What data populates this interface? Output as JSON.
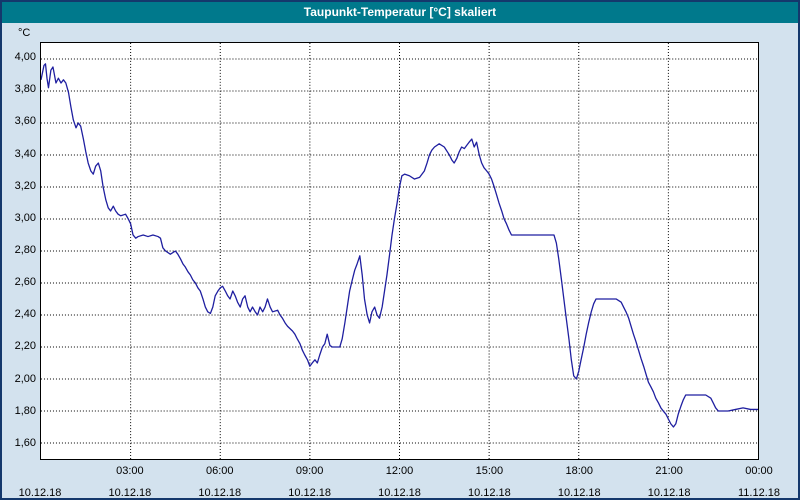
{
  "window": {
    "title": "Taupunkt-Temperatur [°C] skaliert"
  },
  "chart_data": {
    "type": "line",
    "title": "Taupunkt-Temperatur [°C] skaliert",
    "xlabel": "",
    "ylabel": "°C",
    "grid": true,
    "legend": "none",
    "y_range": [
      1.5,
      4.1
    ],
    "x_range_hours": [
      0,
      24
    ],
    "y_ticks": [
      {
        "v": 4.0,
        "label": "4,00"
      },
      {
        "v": 3.8,
        "label": "3,80"
      },
      {
        "v": 3.6,
        "label": "3,60"
      },
      {
        "v": 3.4,
        "label": "3,40"
      },
      {
        "v": 3.2,
        "label": "3,20"
      },
      {
        "v": 3.0,
        "label": "3,00"
      },
      {
        "v": 2.8,
        "label": "2,80"
      },
      {
        "v": 2.6,
        "label": "2,60"
      },
      {
        "v": 2.4,
        "label": "2,40"
      },
      {
        "v": 2.2,
        "label": "2,20"
      },
      {
        "v": 2.0,
        "label": "2,00"
      },
      {
        "v": 1.8,
        "label": "1,80"
      },
      {
        "v": 1.6,
        "label": "1,60"
      }
    ],
    "x_origin": {
      "h": 0,
      "date": "10.12.18"
    },
    "x_ticks": [
      {
        "h": 3,
        "time": "03:00",
        "date": "10.12.18"
      },
      {
        "h": 6,
        "time": "06:00",
        "date": "10.12.18"
      },
      {
        "h": 9,
        "time": "09:00",
        "date": "10.12.18"
      },
      {
        "h": 12,
        "time": "12:00",
        "date": "10.12.18"
      },
      {
        "h": 15,
        "time": "15:00",
        "date": "10.12.18"
      },
      {
        "h": 18,
        "time": "18:00",
        "date": "10.12.18"
      },
      {
        "h": 21,
        "time": "21:00",
        "date": "10.12.18"
      },
      {
        "h": 24,
        "time": "00:00",
        "date": "11.12.18"
      }
    ],
    "series": [
      {
        "name": "Taupunkt-Temperatur",
        "color": "#1f1fa0",
        "points": [
          [
            0,
            3.87
          ],
          [
            0.1,
            3.96
          ],
          [
            0.15,
            3.97
          ],
          [
            0.2,
            3.88
          ],
          [
            0.25,
            3.82
          ],
          [
            0.33,
            3.93
          ],
          [
            0.4,
            3.95
          ],
          [
            0.5,
            3.85
          ],
          [
            0.58,
            3.88
          ],
          [
            0.67,
            3.85
          ],
          [
            0.75,
            3.87
          ],
          [
            0.83,
            3.85
          ],
          [
            0.92,
            3.79
          ],
          [
            1,
            3.7
          ],
          [
            1.08,
            3.62
          ],
          [
            1.17,
            3.57
          ],
          [
            1.25,
            3.6
          ],
          [
            1.33,
            3.58
          ],
          [
            1.42,
            3.5
          ],
          [
            1.5,
            3.42
          ],
          [
            1.58,
            3.35
          ],
          [
            1.67,
            3.3
          ],
          [
            1.75,
            3.28
          ],
          [
            1.83,
            3.33
          ],
          [
            1.92,
            3.35
          ],
          [
            2,
            3.3
          ],
          [
            2.08,
            3.2
          ],
          [
            2.17,
            3.12
          ],
          [
            2.25,
            3.07
          ],
          [
            2.33,
            3.05
          ],
          [
            2.42,
            3.08
          ],
          [
            2.5,
            3.05
          ],
          [
            2.58,
            3.03
          ],
          [
            2.67,
            3.02
          ],
          [
            2.83,
            3.03
          ],
          [
            2.92,
            3.0
          ],
          [
            3,
            2.97
          ],
          [
            3.08,
            2.9
          ],
          [
            3.17,
            2.88
          ],
          [
            3.25,
            2.89
          ],
          [
            3.42,
            2.9
          ],
          [
            3.58,
            2.89
          ],
          [
            3.75,
            2.9
          ],
          [
            3.92,
            2.89
          ],
          [
            4,
            2.88
          ],
          [
            4.08,
            2.82
          ],
          [
            4.17,
            2.8
          ],
          [
            4.33,
            2.78
          ],
          [
            4.5,
            2.8
          ],
          [
            4.58,
            2.78
          ],
          [
            4.67,
            2.75
          ],
          [
            4.75,
            2.72
          ],
          [
            4.83,
            2.7
          ],
          [
            4.92,
            2.67
          ],
          [
            5,
            2.65
          ],
          [
            5.08,
            2.62
          ],
          [
            5.17,
            2.6
          ],
          [
            5.25,
            2.57
          ],
          [
            5.33,
            2.55
          ],
          [
            5.42,
            2.5
          ],
          [
            5.5,
            2.45
          ],
          [
            5.58,
            2.42
          ],
          [
            5.67,
            2.41
          ],
          [
            5.75,
            2.45
          ],
          [
            5.83,
            2.52
          ],
          [
            5.92,
            2.55
          ],
          [
            6,
            2.57
          ],
          [
            6.08,
            2.58
          ],
          [
            6.17,
            2.55
          ],
          [
            6.25,
            2.52
          ],
          [
            6.33,
            2.5
          ],
          [
            6.42,
            2.55
          ],
          [
            6.5,
            2.52
          ],
          [
            6.58,
            2.48
          ],
          [
            6.67,
            2.45
          ],
          [
            6.75,
            2.5
          ],
          [
            6.83,
            2.52
          ],
          [
            6.92,
            2.45
          ],
          [
            7,
            2.42
          ],
          [
            7.08,
            2.45
          ],
          [
            7.17,
            2.42
          ],
          [
            7.25,
            2.4
          ],
          [
            7.33,
            2.45
          ],
          [
            7.42,
            2.42
          ],
          [
            7.5,
            2.45
          ],
          [
            7.58,
            2.5
          ],
          [
            7.67,
            2.45
          ],
          [
            7.75,
            2.42
          ],
          [
            7.92,
            2.43
          ],
          [
            8,
            2.4
          ],
          [
            8.08,
            2.38
          ],
          [
            8.17,
            2.35
          ],
          [
            8.25,
            2.33
          ],
          [
            8.42,
            2.3
          ],
          [
            8.5,
            2.28
          ],
          [
            8.58,
            2.25
          ],
          [
            8.67,
            2.22
          ],
          [
            8.75,
            2.18
          ],
          [
            8.83,
            2.15
          ],
          [
            8.92,
            2.12
          ],
          [
            9,
            2.08
          ],
          [
            9.08,
            2.1
          ],
          [
            9.17,
            2.12
          ],
          [
            9.25,
            2.1
          ],
          [
            9.33,
            2.15
          ],
          [
            9.42,
            2.2
          ],
          [
            9.5,
            2.22
          ],
          [
            9.58,
            2.28
          ],
          [
            9.67,
            2.21
          ],
          [
            9.75,
            2.2
          ],
          [
            10,
            2.2
          ],
          [
            10.08,
            2.25
          ],
          [
            10.17,
            2.35
          ],
          [
            10.25,
            2.45
          ],
          [
            10.33,
            2.55
          ],
          [
            10.42,
            2.62
          ],
          [
            10.5,
            2.68
          ],
          [
            10.58,
            2.72
          ],
          [
            10.67,
            2.77
          ],
          [
            10.75,
            2.65
          ],
          [
            10.83,
            2.5
          ],
          [
            10.92,
            2.4
          ],
          [
            11,
            2.35
          ],
          [
            11.08,
            2.42
          ],
          [
            11.17,
            2.45
          ],
          [
            11.25,
            2.4
          ],
          [
            11.33,
            2.38
          ],
          [
            11.42,
            2.45
          ],
          [
            11.5,
            2.55
          ],
          [
            11.58,
            2.65
          ],
          [
            11.67,
            2.78
          ],
          [
            11.75,
            2.9
          ],
          [
            11.83,
            3.0
          ],
          [
            11.92,
            3.1
          ],
          [
            12,
            3.2
          ],
          [
            12.08,
            3.27
          ],
          [
            12.17,
            3.28
          ],
          [
            12.33,
            3.27
          ],
          [
            12.5,
            3.25
          ],
          [
            12.67,
            3.26
          ],
          [
            12.83,
            3.3
          ],
          [
            12.92,
            3.35
          ],
          [
            13,
            3.4
          ],
          [
            13.08,
            3.43
          ],
          [
            13.17,
            3.45
          ],
          [
            13.33,
            3.47
          ],
          [
            13.5,
            3.45
          ],
          [
            13.67,
            3.4
          ],
          [
            13.75,
            3.37
          ],
          [
            13.83,
            3.35
          ],
          [
            13.92,
            3.38
          ],
          [
            14,
            3.42
          ],
          [
            14.08,
            3.45
          ],
          [
            14.17,
            3.44
          ],
          [
            14.25,
            3.46
          ],
          [
            14.33,
            3.48
          ],
          [
            14.42,
            3.5
          ],
          [
            14.5,
            3.45
          ],
          [
            14.58,
            3.48
          ],
          [
            14.67,
            3.4
          ],
          [
            14.75,
            3.35
          ],
          [
            14.83,
            3.32
          ],
          [
            14.92,
            3.3
          ],
          [
            15,
            3.28
          ],
          [
            15.08,
            3.25
          ],
          [
            15.17,
            3.2
          ],
          [
            15.25,
            3.15
          ],
          [
            15.33,
            3.1
          ],
          [
            15.42,
            3.05
          ],
          [
            15.5,
            3.0
          ],
          [
            15.58,
            2.97
          ],
          [
            15.67,
            2.93
          ],
          [
            15.75,
            2.9
          ],
          [
            16,
            2.9
          ],
          [
            16.5,
            2.9
          ],
          [
            17,
            2.9
          ],
          [
            17.17,
            2.9
          ],
          [
            17.25,
            2.85
          ],
          [
            17.33,
            2.75
          ],
          [
            17.42,
            2.62
          ],
          [
            17.5,
            2.5
          ],
          [
            17.58,
            2.38
          ],
          [
            17.67,
            2.25
          ],
          [
            17.75,
            2.12
          ],
          [
            17.83,
            2.02
          ],
          [
            17.92,
            2.0
          ],
          [
            18,
            2.05
          ],
          [
            18.08,
            2.12
          ],
          [
            18.17,
            2.2
          ],
          [
            18.25,
            2.28
          ],
          [
            18.33,
            2.35
          ],
          [
            18.42,
            2.42
          ],
          [
            18.5,
            2.47
          ],
          [
            18.58,
            2.5
          ],
          [
            18.75,
            2.5
          ],
          [
            19,
            2.5
          ],
          [
            19.25,
            2.5
          ],
          [
            19.42,
            2.48
          ],
          [
            19.5,
            2.45
          ],
          [
            19.58,
            2.42
          ],
          [
            19.67,
            2.38
          ],
          [
            19.75,
            2.33
          ],
          [
            19.83,
            2.28
          ],
          [
            19.92,
            2.23
          ],
          [
            20,
            2.18
          ],
          [
            20.08,
            2.13
          ],
          [
            20.17,
            2.08
          ],
          [
            20.25,
            2.03
          ],
          [
            20.33,
            1.98
          ],
          [
            20.42,
            1.95
          ],
          [
            20.5,
            1.92
          ],
          [
            20.58,
            1.88
          ],
          [
            20.67,
            1.85
          ],
          [
            20.75,
            1.82
          ],
          [
            20.83,
            1.8
          ],
          [
            20.92,
            1.78
          ],
          [
            21,
            1.75
          ],
          [
            21.08,
            1.72
          ],
          [
            21.17,
            1.7
          ],
          [
            21.25,
            1.72
          ],
          [
            21.33,
            1.78
          ],
          [
            21.42,
            1.83
          ],
          [
            21.5,
            1.87
          ],
          [
            21.58,
            1.9
          ],
          [
            21.75,
            1.9
          ],
          [
            22,
            1.9
          ],
          [
            22.25,
            1.9
          ],
          [
            22.42,
            1.88
          ],
          [
            22.5,
            1.85
          ],
          [
            22.58,
            1.82
          ],
          [
            22.67,
            1.8
          ],
          [
            23,
            1.8
          ],
          [
            23.25,
            1.81
          ],
          [
            23.5,
            1.82
          ],
          [
            23.75,
            1.81
          ],
          [
            24,
            1.81
          ]
        ]
      }
    ],
    "colors": {
      "titlebar": "#00798c",
      "title_text": "#ffffff",
      "window_bg": "#d3e2ee",
      "window_border": "#14386c",
      "plot_bg": "#ffffff",
      "plot_border": "#000000",
      "grid": "#000000",
      "line": "#1f1fa0"
    }
  }
}
